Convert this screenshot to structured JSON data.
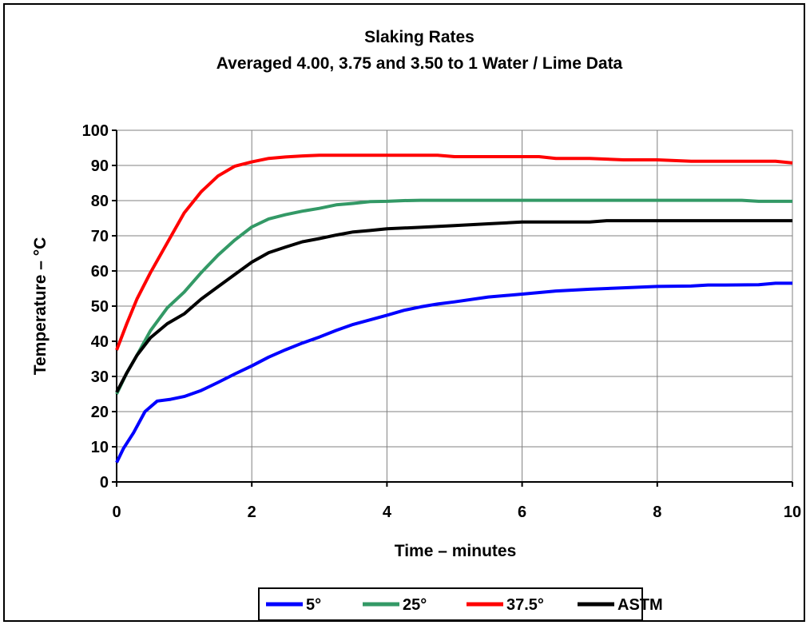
{
  "chart_data": {
    "type": "line",
    "title": "Slaking Rates",
    "subtitle": "Averaged 4.00, 3.75 and 3.50 to 1 Water / Lime Data",
    "xlabel": "Time – minutes",
    "ylabel": "Temperature – °C",
    "xlim": [
      0,
      10
    ],
    "ylim": [
      0,
      100
    ],
    "x_ticks": [
      "0",
      "2",
      "4",
      "6",
      "8",
      "10"
    ],
    "y_ticks": [
      "0",
      "10",
      "20",
      "30",
      "40",
      "50",
      "60",
      "70",
      "80",
      "90",
      "100"
    ],
    "grid": true,
    "legend_position": "bottom",
    "series": [
      {
        "name": "5°",
        "color": "#0000ff",
        "x": [
          0,
          0.1,
          0.25,
          0.42,
          0.6,
          0.8,
          1.0,
          1.25,
          1.5,
          1.75,
          2.0,
          2.25,
          2.5,
          2.75,
          3.0,
          3.25,
          3.5,
          3.75,
          4.0,
          4.25,
          4.5,
          4.75,
          5.0,
          5.5,
          6.0,
          6.5,
          7.0,
          7.5,
          8.0,
          8.5,
          8.75,
          9.0,
          9.5,
          9.75,
          10.0
        ],
        "y": [
          5.5,
          9.5,
          14,
          20,
          23,
          23.5,
          24.3,
          26,
          28.3,
          30.7,
          33,
          35.5,
          37.6,
          39.5,
          41.2,
          43.1,
          44.8,
          46.1,
          47.4,
          48.8,
          49.8,
          50.6,
          51.2,
          52.6,
          53.4,
          54.3,
          54.8,
          55.2,
          55.6,
          55.7,
          56.0,
          56.0,
          56.1,
          56.5,
          56.5
        ]
      },
      {
        "name": "25°",
        "color": "#339966",
        "x": [
          0,
          0.15,
          0.3,
          0.5,
          0.75,
          1.0,
          1.25,
          1.5,
          1.75,
          2.0,
          2.25,
          2.5,
          2.75,
          3.0,
          3.25,
          3.5,
          3.75,
          4.0,
          4.25,
          4.5,
          5.0,
          6.0,
          7.0,
          8.0,
          9.0,
          9.25,
          9.5,
          10.0
        ],
        "y": [
          25,
          31,
          36,
          43,
          49.5,
          54,
          59.5,
          64.5,
          68.8,
          72.5,
          74.8,
          76,
          77,
          77.8,
          78.8,
          79.2,
          79.7,
          79.8,
          80,
          80.1,
          80.1,
          80.1,
          80.1,
          80.1,
          80.1,
          80.1,
          79.8,
          79.8
        ]
      },
      {
        "name": "37.5°",
        "color": "#ff0000",
        "x": [
          0,
          0.15,
          0.3,
          0.5,
          0.75,
          1.0,
          1.25,
          1.5,
          1.75,
          2.0,
          2.25,
          2.5,
          2.75,
          3.0,
          3.5,
          4.0,
          4.5,
          4.75,
          5.0,
          5.5,
          6.0,
          6.25,
          6.5,
          7.0,
          7.5,
          8.0,
          8.5,
          9.0,
          9.5,
          9.75,
          10.0
        ],
        "y": [
          37.5,
          45,
          52,
          59.5,
          68,
          76.5,
          82.5,
          87,
          89.8,
          91,
          92,
          92.4,
          92.7,
          92.9,
          92.9,
          92.9,
          92.9,
          92.9,
          92.5,
          92.5,
          92.5,
          92.5,
          92.0,
          92.0,
          91.6,
          91.6,
          91.2,
          91.2,
          91.2,
          91.2,
          90.7
        ]
      },
      {
        "name": "ASTM",
        "color": "#000000",
        "x": [
          0,
          0.15,
          0.3,
          0.5,
          0.75,
          1.0,
          1.25,
          1.5,
          1.75,
          2.0,
          2.25,
          2.5,
          2.75,
          3.0,
          3.25,
          3.5,
          3.75,
          4.0,
          4.5,
          5.0,
          5.5,
          6.0,
          6.5,
          7.0,
          7.25,
          7.5,
          8.0,
          8.5,
          9.0,
          9.5,
          10.0
        ],
        "y": [
          25.5,
          31,
          36,
          41,
          45,
          47.8,
          52,
          55.5,
          59,
          62.5,
          65.2,
          66.8,
          68.3,
          69.2,
          70.2,
          71.1,
          71.5,
          72,
          72.4,
          72.9,
          73.4,
          73.9,
          73.9,
          73.9,
          74.3,
          74.3,
          74.3,
          74.3,
          74.3,
          74.3,
          74.3
        ]
      }
    ]
  }
}
